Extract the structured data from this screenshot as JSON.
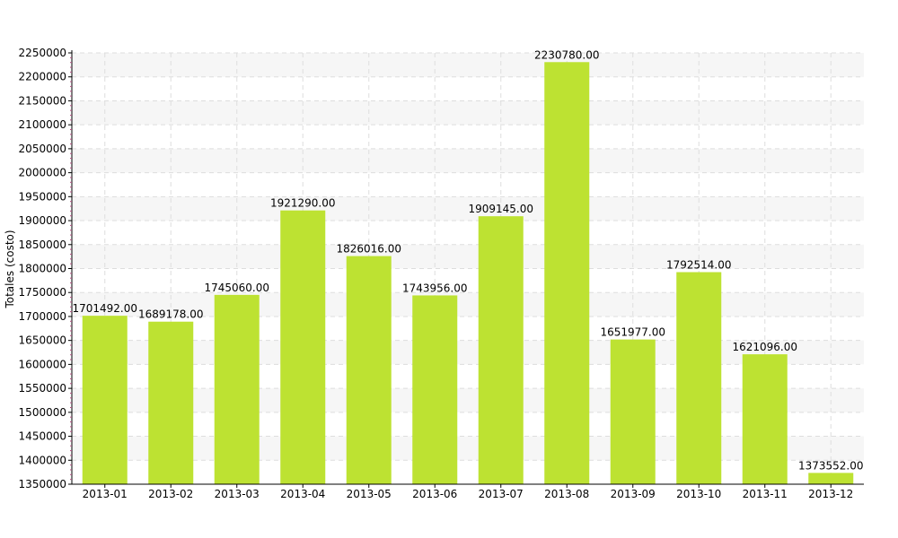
{
  "chart_data": {
    "type": "bar",
    "title": "",
    "xlabel": "",
    "ylabel": "Totales (costo)",
    "categories": [
      "2013-01",
      "2013-02",
      "2013-03",
      "2013-04",
      "2013-05",
      "2013-06",
      "2013-07",
      "2013-08",
      "2013-09",
      "2013-10",
      "2013-11",
      "2013-12"
    ],
    "values": [
      1701492.0,
      1689178.0,
      1745060.0,
      1921290.0,
      1826016.0,
      1743956.0,
      1909145.0,
      2230780.0,
      1651977.0,
      1792514.0,
      1621096.0,
      1373552.0
    ],
    "value_labels": [
      "1701492.00",
      "1689178.00",
      "1745060.00",
      "1921290.00",
      "1826016.00",
      "1743956.00",
      "1909145.00",
      "2230780.00",
      "1651977.00",
      "1792514.00",
      "1621096.00",
      "1373552.00"
    ],
    "ylim": [
      1350000,
      2250000
    ],
    "yticks": [
      1350000,
      1400000,
      1450000,
      1500000,
      1550000,
      1600000,
      1650000,
      1700000,
      1750000,
      1800000,
      1850000,
      1900000,
      1950000,
      2000000,
      2050000,
      2100000,
      2150000,
      2200000,
      2250000
    ],
    "grid": true,
    "legend": "none",
    "colors": {
      "bar": "#bde232",
      "band": "#f6f6f6",
      "grid": "#dddddd",
      "axis": "#000000",
      "minor_tick": "#b05080"
    }
  }
}
